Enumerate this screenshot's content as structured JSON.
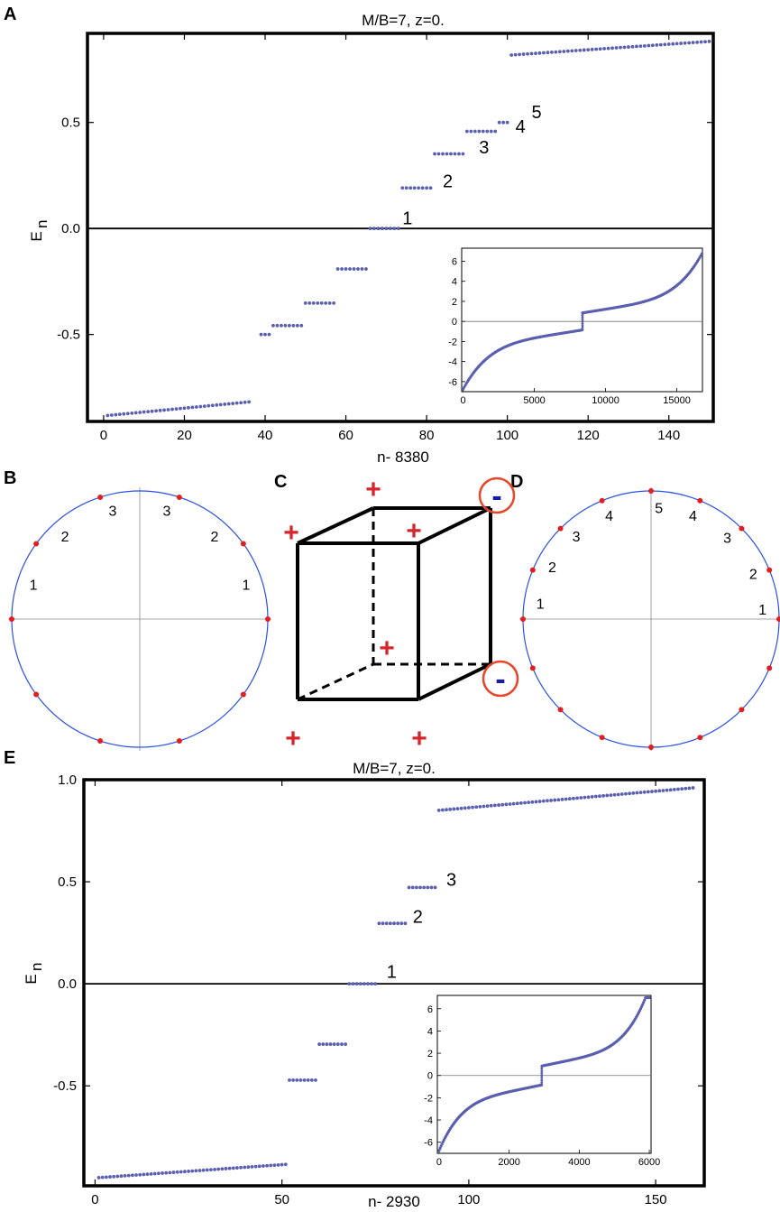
{
  "panels": {
    "A": "A",
    "B": "B",
    "C": "C",
    "D": "D",
    "E": "E"
  },
  "colors": {
    "points": "#5a5fb0",
    "red": "#e02020",
    "circle": "#2a50e8",
    "sign_red": "#d4262c",
    "sign_blue": "#1a1aa8"
  },
  "chart_data": [
    {
      "panel": "A",
      "type": "scatter",
      "title": "M/B=7, z=0.",
      "xlabel": "n- 8380",
      "ylabel_main": "E",
      "ylabel_sub": "n",
      "xlim": [
        -4,
        151
      ],
      "ylim": [
        -0.91,
        0.92
      ],
      "xticks": [
        "0",
        "20",
        "40",
        "60",
        "80",
        "100",
        "120",
        "140"
      ],
      "xtick_values": [
        0,
        20,
        40,
        60,
        80,
        100,
        120,
        140
      ],
      "yticks": [
        "-0.5",
        "0.0",
        "0.5"
      ],
      "ytick_values": [
        -0.5,
        0.0,
        0.5
      ],
      "segments": [
        {
          "x0": 1,
          "x1": 36,
          "y0": -0.882,
          "y1": -0.818
        },
        {
          "x0": 39,
          "x1": 41,
          "y0": -0.5,
          "y1": -0.5
        },
        {
          "x0": 42,
          "x1": 49,
          "y0": -0.458,
          "y1": -0.458
        },
        {
          "x0": 50,
          "x1": 57,
          "y0": -0.352,
          "y1": -0.352
        },
        {
          "x0": 58,
          "x1": 65,
          "y0": -0.191,
          "y1": -0.191
        },
        {
          "x0": 66,
          "x1": 73,
          "y0": 0.0,
          "y1": 0.0
        },
        {
          "x0": 74,
          "x1": 81,
          "y0": 0.191,
          "y1": 0.191
        },
        {
          "x0": 82,
          "x1": 89,
          "y0": 0.352,
          "y1": 0.352
        },
        {
          "x0": 90,
          "x1": 97,
          "y0": 0.458,
          "y1": 0.458
        },
        {
          "x0": 98,
          "x1": 100,
          "y0": 0.5,
          "y1": 0.5
        },
        {
          "x0": 101,
          "x1": 150,
          "y0": 0.818,
          "y1": 0.882
        }
      ],
      "annotations": [
        {
          "text": "1",
          "x": 74,
          "y": 0.02
        },
        {
          "text": "2",
          "x": 84,
          "y": 0.195
        },
        {
          "text": "3",
          "x": 93,
          "y": 0.355
        },
        {
          "text": "4",
          "x": 102,
          "y": 0.452
        },
        {
          "text": "5",
          "x": 106,
          "y": 0.52
        }
      ],
      "inset": {
        "xlim": [
          -100,
          16800
        ],
        "ylim": [
          -7,
          7.3
        ],
        "xticks": [
          "0",
          "5000",
          "10000",
          "15000"
        ],
        "xtick_values": [
          0,
          5000,
          10000,
          15000
        ],
        "yticks": [
          "-6",
          "-4",
          "-2",
          "0",
          "2",
          "4",
          "6"
        ],
        "ytick_values": [
          -6,
          -4,
          -2,
          0,
          2,
          4,
          6
        ],
        "n_total": 16760,
        "jump_at": 8380
      }
    },
    {
      "panel": "E",
      "type": "scatter",
      "title": "M/B=7, z=0.",
      "xlabel": "n- 2930",
      "ylabel_main": "E",
      "ylabel_sub": "n",
      "xlim": [
        -3,
        163
      ],
      "ylim": [
        -0.99,
        1.0
      ],
      "xticks": [
        "0",
        "50",
        "100",
        "150"
      ],
      "xtick_values": [
        0,
        50,
        100,
        150
      ],
      "yticks": [
        "-0.5",
        "0.0",
        "0.5",
        "1.0"
      ],
      "ytick_values": [
        -0.5,
        0.0,
        0.5,
        1.0
      ],
      "segments": [
        {
          "x0": 1,
          "x1": 51,
          "y0": -0.95,
          "y1": -0.885
        },
        {
          "x0": 52,
          "x1": 59,
          "y0": -0.472,
          "y1": -0.472
        },
        {
          "x0": 60,
          "x1": 67,
          "y0": -0.296,
          "y1": -0.296
        },
        {
          "x0": 68,
          "x1": 75,
          "y0": 0.0,
          "y1": 0.0
        },
        {
          "x0": 76,
          "x1": 83,
          "y0": 0.296,
          "y1": 0.296
        },
        {
          "x0": 84,
          "x1": 91,
          "y0": 0.472,
          "y1": 0.472
        },
        {
          "x0": 92,
          "x1": 160,
          "y0": 0.85,
          "y1": 0.96
        }
      ],
      "annotations": [
        {
          "text": "1",
          "x": 78,
          "y": 0.03
        },
        {
          "text": "2",
          "x": 85,
          "y": 0.3
        },
        {
          "text": "3",
          "x": 94,
          "y": 0.48
        }
      ],
      "inset": {
        "xlim": [
          -50,
          6050
        ],
        "ylim": [
          -7,
          7.2
        ],
        "xticks": [
          "0",
          "2000",
          "4000",
          "6000"
        ],
        "xtick_values": [
          0,
          2000,
          4000,
          6000
        ],
        "yticks": [
          "-6",
          "-4",
          "-2",
          "0",
          "2",
          "4",
          "6"
        ],
        "ytick_values": [
          -6,
          -4,
          -2,
          0,
          2,
          4,
          6
        ],
        "n_total": 6000,
        "jump_at": 2930
      }
    }
  ],
  "circle_B": {
    "n_points": 10,
    "labels": [
      {
        "text": "1",
        "angle": 162
      },
      {
        "text": "2",
        "angle": 132
      },
      {
        "text": "3",
        "angle": 104
      },
      {
        "text": "3",
        "angle": 76
      },
      {
        "text": "2",
        "angle": 48
      },
      {
        "text": "1",
        "angle": 18
      }
    ]
  },
  "circle_D": {
    "n_points": 16,
    "labels": [
      {
        "text": "1",
        "angle": 172
      },
      {
        "text": "2",
        "angle": 152
      },
      {
        "text": "3",
        "angle": 132
      },
      {
        "text": "4",
        "angle": 112
      },
      {
        "text": "5",
        "angle": 86
      },
      {
        "text": "4",
        "angle": 68
      },
      {
        "text": "3",
        "angle": 47
      },
      {
        "text": "2",
        "angle": 24
      },
      {
        "text": "1",
        "angle": 5
      }
    ]
  },
  "cube": {
    "plus": "+",
    "minus": "-"
  }
}
